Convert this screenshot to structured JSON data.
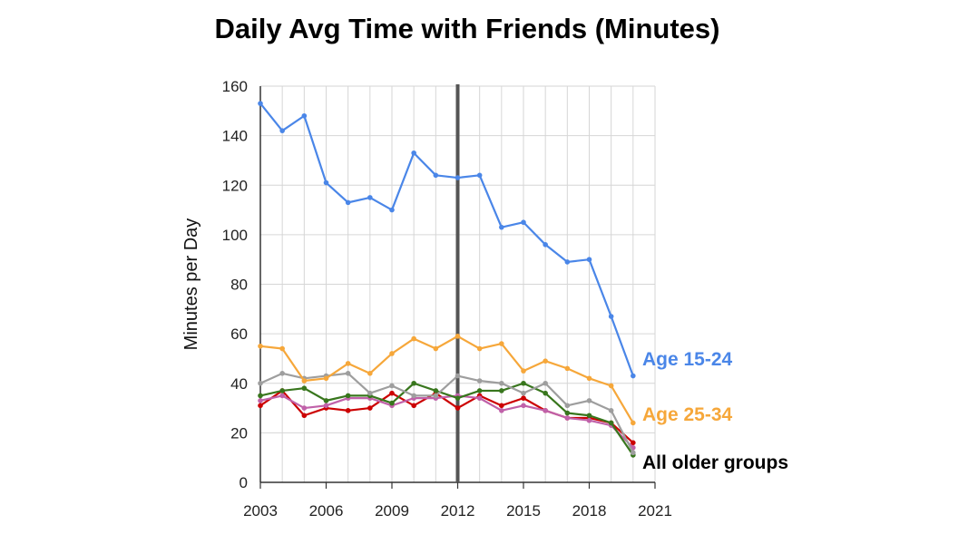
{
  "chart_data": {
    "type": "line",
    "title": "Daily Avg Time with Friends (Minutes)",
    "ylabel": "Minutes per Day",
    "xlabel": "",
    "xlim": [
      2003,
      2021
    ],
    "ylim": [
      0,
      160
    ],
    "x_ticks": [
      2003,
      2006,
      2009,
      2012,
      2015,
      2018,
      2021
    ],
    "y_ticks": [
      0,
      20,
      40,
      60,
      80,
      100,
      120,
      140,
      160
    ],
    "x_tick_labels": [
      "2003",
      "2006",
      "2009",
      "2012",
      "2015",
      "2018",
      "2021"
    ],
    "y_tick_labels": [
      "0",
      "20",
      "40",
      "60",
      "80",
      "100",
      "120",
      "140",
      "160"
    ],
    "grid": true,
    "vertical_marker_x": 2012,
    "x": [
      2003,
      2004,
      2005,
      2006,
      2007,
      2008,
      2009,
      2010,
      2011,
      2012,
      2013,
      2014,
      2015,
      2016,
      2017,
      2018,
      2019,
      2020
    ],
    "series": [
      {
        "label": "Age 15-24",
        "color": "#4a86e8",
        "values": [
          153,
          142,
          148,
          121,
          113,
          115,
          110,
          133,
          124,
          123,
          124,
          103,
          105,
          96,
          89,
          90,
          67,
          43
        ]
      },
      {
        "label": "Age 25-34",
        "color": "#f6a73a",
        "values": [
          55,
          54,
          41,
          42,
          48,
          44,
          52,
          58,
          54,
          59,
          54,
          56,
          45,
          49,
          46,
          42,
          39,
          24
        ]
      },
      {
        "color": "#9e9e9e",
        "values": [
          40,
          44,
          42,
          43,
          44,
          36,
          39,
          35,
          35,
          43,
          41,
          40,
          36,
          40,
          31,
          33,
          29,
          12
        ]
      },
      {
        "color": "#38761d",
        "values": [
          35,
          37,
          38,
          33,
          35,
          35,
          32,
          40,
          37,
          34,
          37,
          37,
          40,
          36,
          28,
          27,
          24,
          11
        ]
      },
      {
        "color": "#c061a9",
        "values": [
          33,
          35,
          30,
          31,
          34,
          34,
          31,
          34,
          34,
          35,
          34,
          29,
          31,
          29,
          26,
          25,
          23,
          14
        ]
      },
      {
        "color": "#cc0000",
        "values": [
          31,
          37,
          27,
          30,
          29,
          30,
          36,
          31,
          36,
          30,
          35,
          31,
          34,
          29,
          26,
          26,
          24,
          16
        ]
      }
    ],
    "annotations": [
      {
        "text": "Age 15-24",
        "color": "#4a86e8"
      },
      {
        "text": "Age 25-34",
        "color": "#f6a73a"
      },
      {
        "text": "All older groups",
        "color": "#000000"
      }
    ]
  }
}
